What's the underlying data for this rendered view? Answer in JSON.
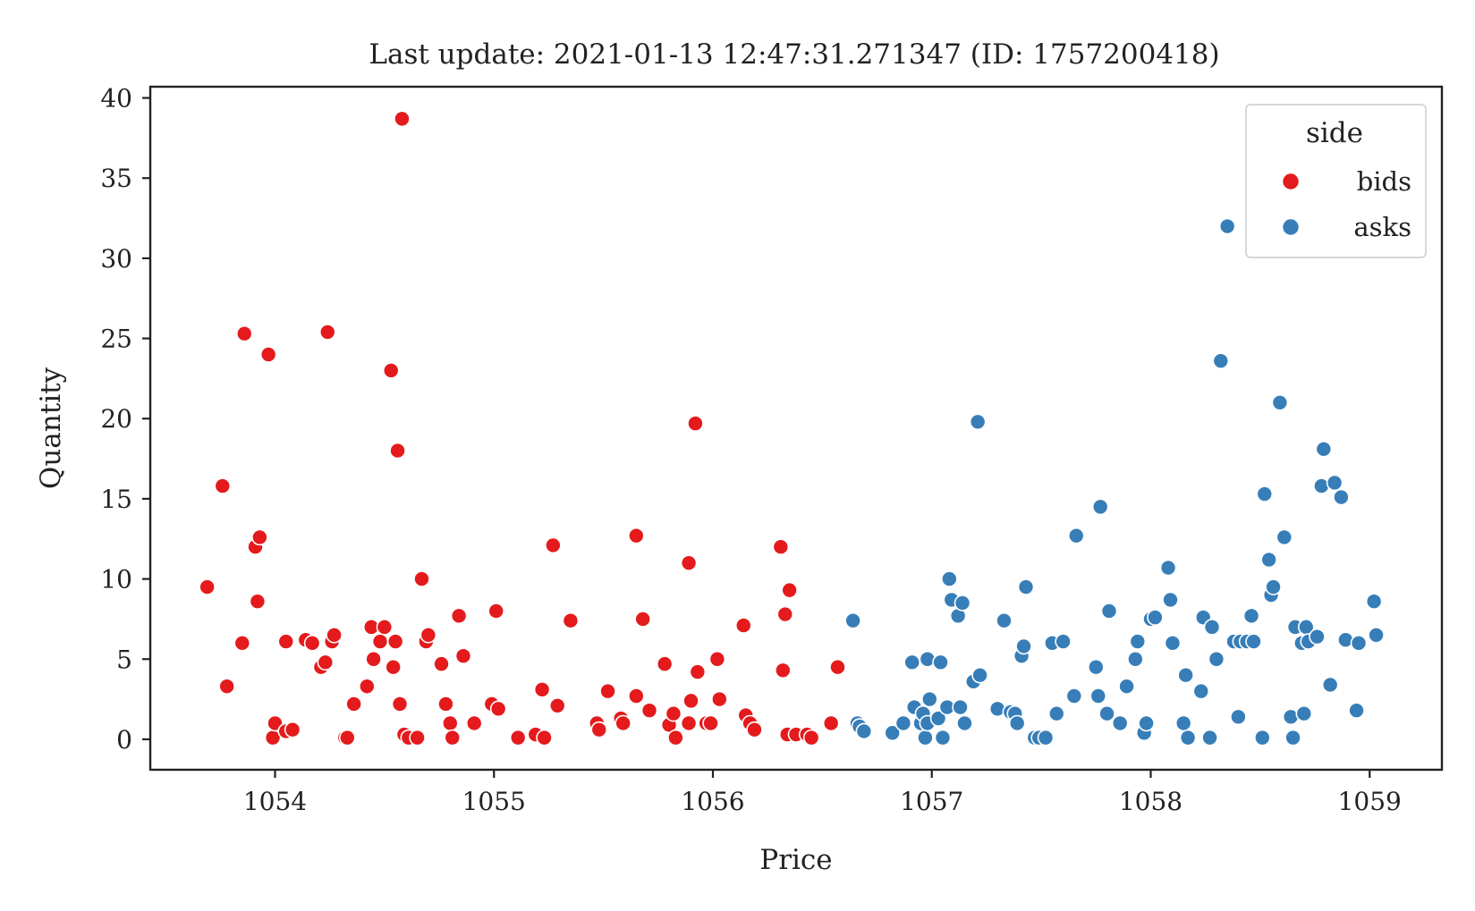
{
  "chart_data": {
    "type": "scatter",
    "title": "Last update: 2021-01-13 12:47:31.271347 (ID: 1757200418)",
    "xlabel": "Price",
    "ylabel": "Quantity",
    "xlim": [
      1053.43,
      1059.33
    ],
    "ylim": [
      -1.9,
      40.7
    ],
    "xticks": [
      1054,
      1055,
      1056,
      1057,
      1058,
      1059
    ],
    "yticks": [
      0,
      5,
      10,
      15,
      20,
      25,
      30,
      35,
      40
    ],
    "grid": false,
    "legend": {
      "title": "side",
      "placement": "top-right"
    },
    "series": [
      {
        "name": "bids",
        "color": "#e41a1c",
        "points": [
          [
            1053.69,
            9.5
          ],
          [
            1053.76,
            15.8
          ],
          [
            1053.78,
            3.3
          ],
          [
            1053.85,
            6.0
          ],
          [
            1053.86,
            25.3
          ],
          [
            1053.91,
            12.0
          ],
          [
            1053.92,
            8.6
          ],
          [
            1053.93,
            12.6
          ],
          [
            1053.97,
            24.0
          ],
          [
            1053.99,
            0.1
          ],
          [
            1054.0,
            1.0
          ],
          [
            1054.05,
            0.5
          ],
          [
            1054.05,
            6.1
          ],
          [
            1054.08,
            0.6
          ],
          [
            1054.14,
            6.2
          ],
          [
            1054.17,
            6.0
          ],
          [
            1054.21,
            4.5
          ],
          [
            1054.23,
            4.8
          ],
          [
            1054.24,
            25.4
          ],
          [
            1054.26,
            6.1
          ],
          [
            1054.27,
            6.5
          ],
          [
            1054.32,
            0.1
          ],
          [
            1054.33,
            0.1
          ],
          [
            1054.36,
            2.2
          ],
          [
            1054.42,
            3.3
          ],
          [
            1054.44,
            7.0
          ],
          [
            1054.45,
            5.0
          ],
          [
            1054.48,
            6.1
          ],
          [
            1054.5,
            7.0
          ],
          [
            1054.53,
            23.0
          ],
          [
            1054.54,
            4.5
          ],
          [
            1054.55,
            6.1
          ],
          [
            1054.56,
            18.0
          ],
          [
            1054.57,
            2.2
          ],
          [
            1054.58,
            38.7
          ],
          [
            1054.59,
            0.3
          ],
          [
            1054.61,
            0.1
          ],
          [
            1054.65,
            0.1
          ],
          [
            1054.67,
            10.0
          ],
          [
            1054.69,
            6.1
          ],
          [
            1054.7,
            6.5
          ],
          [
            1054.76,
            4.7
          ],
          [
            1054.78,
            2.2
          ],
          [
            1054.8,
            1.0
          ],
          [
            1054.81,
            0.1
          ],
          [
            1054.84,
            7.7
          ],
          [
            1054.86,
            5.2
          ],
          [
            1054.91,
            1.0
          ],
          [
            1054.99,
            2.2
          ],
          [
            1055.01,
            8.0
          ],
          [
            1055.02,
            1.9
          ],
          [
            1055.11,
            0.1
          ],
          [
            1055.19,
            0.3
          ],
          [
            1055.22,
            3.1
          ],
          [
            1055.23,
            0.1
          ],
          [
            1055.27,
            12.1
          ],
          [
            1055.29,
            2.1
          ],
          [
            1055.35,
            7.4
          ],
          [
            1055.47,
            1.0
          ],
          [
            1055.48,
            0.6
          ],
          [
            1055.52,
            3.0
          ],
          [
            1055.58,
            1.3
          ],
          [
            1055.59,
            1.0
          ],
          [
            1055.65,
            12.7
          ],
          [
            1055.65,
            2.7
          ],
          [
            1055.68,
            7.5
          ],
          [
            1055.71,
            1.8
          ],
          [
            1055.78,
            4.7
          ],
          [
            1055.8,
            0.9
          ],
          [
            1055.82,
            1.6
          ],
          [
            1055.83,
            0.1
          ],
          [
            1055.89,
            11.0
          ],
          [
            1055.89,
            1.0
          ],
          [
            1055.9,
            2.4
          ],
          [
            1055.92,
            19.7
          ],
          [
            1055.93,
            4.2
          ],
          [
            1055.97,
            1.0
          ],
          [
            1055.99,
            1.0
          ],
          [
            1056.02,
            5.0
          ],
          [
            1056.03,
            2.5
          ],
          [
            1056.14,
            7.1
          ],
          [
            1056.15,
            1.5
          ],
          [
            1056.17,
            1.0
          ],
          [
            1056.19,
            0.6
          ],
          [
            1056.31,
            12.0
          ],
          [
            1056.32,
            4.3
          ],
          [
            1056.33,
            7.8
          ],
          [
            1056.34,
            0.3
          ],
          [
            1056.35,
            9.3
          ],
          [
            1056.38,
            0.3
          ],
          [
            1056.43,
            0.3
          ],
          [
            1056.45,
            0.1
          ],
          [
            1056.54,
            1.0
          ],
          [
            1056.57,
            4.5
          ]
        ]
      },
      {
        "name": "asks",
        "color": "#377eb8",
        "points": [
          [
            1056.64,
            7.4
          ],
          [
            1056.66,
            1.0
          ],
          [
            1056.67,
            0.8
          ],
          [
            1056.69,
            0.5
          ],
          [
            1056.82,
            0.4
          ],
          [
            1056.87,
            1.0
          ],
          [
            1056.91,
            4.8
          ],
          [
            1056.92,
            2.0
          ],
          [
            1056.95,
            1.0
          ],
          [
            1056.96,
            1.6
          ],
          [
            1056.97,
            0.1
          ],
          [
            1056.98,
            1.0
          ],
          [
            1056.98,
            5.0
          ],
          [
            1056.99,
            2.5
          ],
          [
            1057.03,
            1.3
          ],
          [
            1057.04,
            4.8
          ],
          [
            1057.05,
            0.1
          ],
          [
            1057.07,
            2.0
          ],
          [
            1057.08,
            10.0
          ],
          [
            1057.09,
            8.7
          ],
          [
            1057.12,
            7.7
          ],
          [
            1057.13,
            2.0
          ],
          [
            1057.14,
            8.5
          ],
          [
            1057.15,
            1.0
          ],
          [
            1057.19,
            3.6
          ],
          [
            1057.21,
            19.8
          ],
          [
            1057.22,
            4.0
          ],
          [
            1057.3,
            1.9
          ],
          [
            1057.33,
            7.4
          ],
          [
            1057.36,
            1.7
          ],
          [
            1057.38,
            1.6
          ],
          [
            1057.39,
            1.0
          ],
          [
            1057.41,
            5.2
          ],
          [
            1057.42,
            5.8
          ],
          [
            1057.43,
            9.5
          ],
          [
            1057.47,
            0.1
          ],
          [
            1057.49,
            0.1
          ],
          [
            1057.52,
            0.1
          ],
          [
            1057.55,
            6.0
          ],
          [
            1057.57,
            1.6
          ],
          [
            1057.6,
            6.1
          ],
          [
            1057.65,
            2.7
          ],
          [
            1057.66,
            12.7
          ],
          [
            1057.75,
            4.5
          ],
          [
            1057.76,
            2.7
          ],
          [
            1057.77,
            14.5
          ],
          [
            1057.8,
            1.6
          ],
          [
            1057.81,
            8.0
          ],
          [
            1057.86,
            1.0
          ],
          [
            1057.89,
            3.3
          ],
          [
            1057.93,
            5.0
          ],
          [
            1057.94,
            6.1
          ],
          [
            1057.97,
            0.4
          ],
          [
            1057.98,
            1.0
          ],
          [
            1058.0,
            7.5
          ],
          [
            1058.02,
            7.6
          ],
          [
            1058.08,
            10.7
          ],
          [
            1058.09,
            8.7
          ],
          [
            1058.1,
            6.0
          ],
          [
            1058.15,
            1.0
          ],
          [
            1058.16,
            4.0
          ],
          [
            1058.17,
            0.1
          ],
          [
            1058.23,
            3.0
          ],
          [
            1058.24,
            7.6
          ],
          [
            1058.27,
            0.1
          ],
          [
            1058.28,
            7.0
          ],
          [
            1058.3,
            5.0
          ],
          [
            1058.32,
            23.6
          ],
          [
            1058.35,
            32.0
          ],
          [
            1058.38,
            6.1
          ],
          [
            1058.4,
            1.4
          ],
          [
            1058.41,
            6.1
          ],
          [
            1058.44,
            6.1
          ],
          [
            1058.46,
            7.7
          ],
          [
            1058.47,
            6.1
          ],
          [
            1058.51,
            0.1
          ],
          [
            1058.52,
            15.3
          ],
          [
            1058.54,
            11.2
          ],
          [
            1058.55,
            9.0
          ],
          [
            1058.56,
            9.5
          ],
          [
            1058.59,
            21.0
          ],
          [
            1058.61,
            12.6
          ],
          [
            1058.64,
            1.4
          ],
          [
            1058.65,
            0.1
          ],
          [
            1058.66,
            7.0
          ],
          [
            1058.69,
            6.0
          ],
          [
            1058.7,
            1.6
          ],
          [
            1058.71,
            7.0
          ],
          [
            1058.72,
            6.1
          ],
          [
            1058.76,
            6.4
          ],
          [
            1058.78,
            15.8
          ],
          [
            1058.79,
            18.1
          ],
          [
            1058.82,
            3.4
          ],
          [
            1058.84,
            16.0
          ],
          [
            1058.87,
            15.1
          ],
          [
            1058.89,
            6.2
          ],
          [
            1058.94,
            1.8
          ],
          [
            1058.95,
            6.0
          ],
          [
            1059.02,
            8.6
          ],
          [
            1059.03,
            6.5
          ]
        ]
      }
    ]
  }
}
